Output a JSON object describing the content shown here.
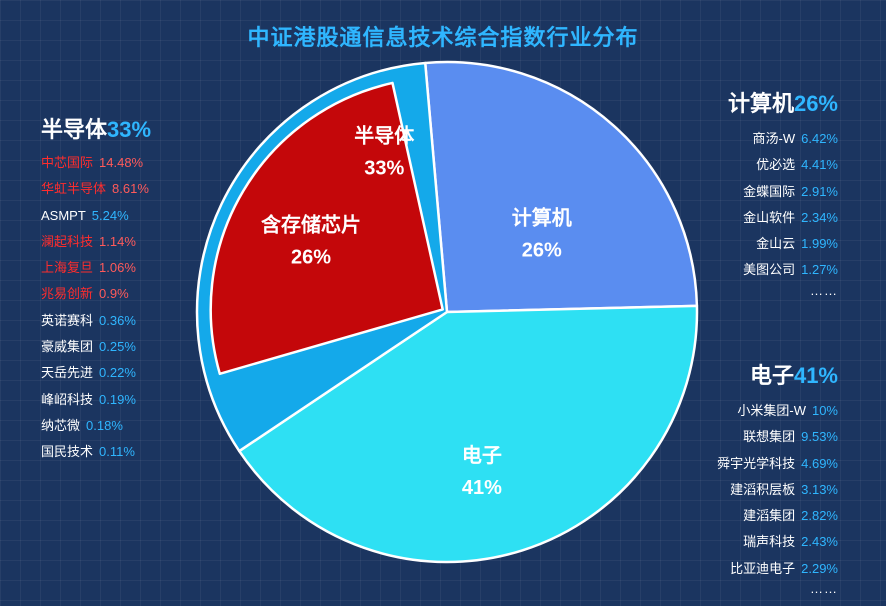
{
  "title": "中证港股通信息技术综合指数行业分布",
  "chart_data": {
    "type": "pie",
    "title": "中证港股通信息技术综合指数行业分布",
    "slices": [
      {
        "label": "半导体",
        "value": 33,
        "value_label": "33%",
        "color": "#14a9ea"
      },
      {
        "label": "计算机",
        "value": 26,
        "value_label": "26%",
        "color": "#5a8df0"
      },
      {
        "label": "电子",
        "value": 41,
        "value_label": "41%",
        "color": "#2ee0f3"
      },
      {
        "label": "含存储芯片",
        "value": 26,
        "value_label": "26%",
        "color": "#c4070a",
        "note": "sub-segment of 半导体"
      }
    ]
  },
  "legends": {
    "semiconductor": {
      "name": "半导体",
      "pct": "33%",
      "items": [
        {
          "name": "中芯国际",
          "value": "14.48%",
          "highlight": true
        },
        {
          "name": "华虹半导体",
          "value": "8.61%",
          "highlight": true
        },
        {
          "name": "ASMPT",
          "value": "5.24%",
          "highlight": false
        },
        {
          "name": "澜起科技",
          "value": "1.14%",
          "highlight": true
        },
        {
          "name": "上海复旦",
          "value": "1.06%",
          "highlight": true
        },
        {
          "name": "兆易创新",
          "value": "0.9%",
          "highlight": true
        },
        {
          "name": "英诺赛科",
          "value": "0.36%",
          "highlight": false
        },
        {
          "name": "豪威集团",
          "value": "0.25%",
          "highlight": false
        },
        {
          "name": "天岳先进",
          "value": "0.22%",
          "highlight": false
        },
        {
          "name": "峰岹科技",
          "value": "0.19%",
          "highlight": false
        },
        {
          "name": "纳芯微",
          "value": "0.18%",
          "highlight": false
        },
        {
          "name": "国民技术",
          "value": "0.11%",
          "highlight": false
        }
      ]
    },
    "computer": {
      "name": "计算机",
      "pct": "26%",
      "items": [
        {
          "name": "商汤-W",
          "value": "6.42%"
        },
        {
          "name": "优必选",
          "value": "4.41%"
        },
        {
          "name": "金蝶国际",
          "value": "2.91%"
        },
        {
          "name": "金山软件",
          "value": "2.34%"
        },
        {
          "name": "金山云",
          "value": "1.99%"
        },
        {
          "name": "美图公司",
          "value": "1.27%"
        }
      ],
      "more": "……"
    },
    "electronics": {
      "name": "电子",
      "pct": "41%",
      "items": [
        {
          "name": "小米集团-W",
          "value": "10%"
        },
        {
          "name": "联想集团",
          "value": "9.53%"
        },
        {
          "name": "舜宇光学科技",
          "value": "4.69%"
        },
        {
          "name": "建滔积层板",
          "value": "3.13%"
        },
        {
          "name": "建滔集团",
          "value": "2.82%"
        },
        {
          "name": "瑞声科技",
          "value": "2.43%"
        },
        {
          "name": "比亚迪电子",
          "value": "2.29%"
        }
      ],
      "more": "……"
    }
  }
}
